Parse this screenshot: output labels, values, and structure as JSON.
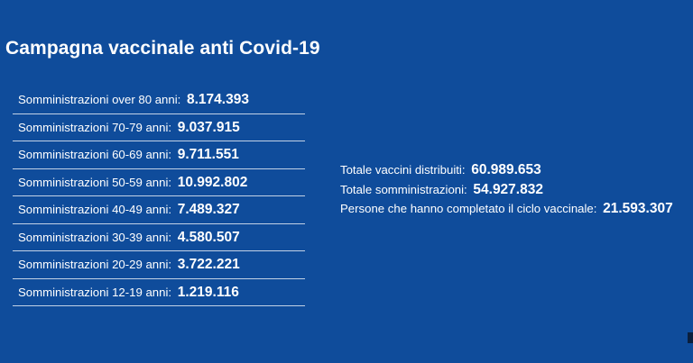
{
  "title": "Campagna vaccinale anti Covid-19",
  "age_groups": [
    {
      "label": "Somministrazioni over 80 anni:",
      "value": "8.174.393"
    },
    {
      "label": "Somministrazioni 70-79 anni:",
      "value": "9.037.915"
    },
    {
      "label": "Somministrazioni 60-69 anni:",
      "value": "9.711.551"
    },
    {
      "label": "Somministrazioni 50-59 anni:",
      "value": "10.992.802"
    },
    {
      "label": "Somministrazioni 40-49 anni:",
      "value": "7.489.327"
    },
    {
      "label": "Somministrazioni 30-39 anni:",
      "value": "4.580.507"
    },
    {
      "label": "Somministrazioni 20-29 anni:",
      "value": "3.722.221"
    },
    {
      "label": "Somministrazioni 12-19 anni:",
      "value": "1.219.116"
    }
  ],
  "totals": [
    {
      "label": "Totale vaccini distribuiti:",
      "value": "60.989.653"
    },
    {
      "label": "Totale somministrazioni:",
      "value": "54.927.832"
    },
    {
      "label": "Persone che hanno completato il ciclo vaccinale:",
      "value": "21.593.307"
    }
  ],
  "colors": {
    "background": "#0f4c9b",
    "text": "#ffffff"
  }
}
